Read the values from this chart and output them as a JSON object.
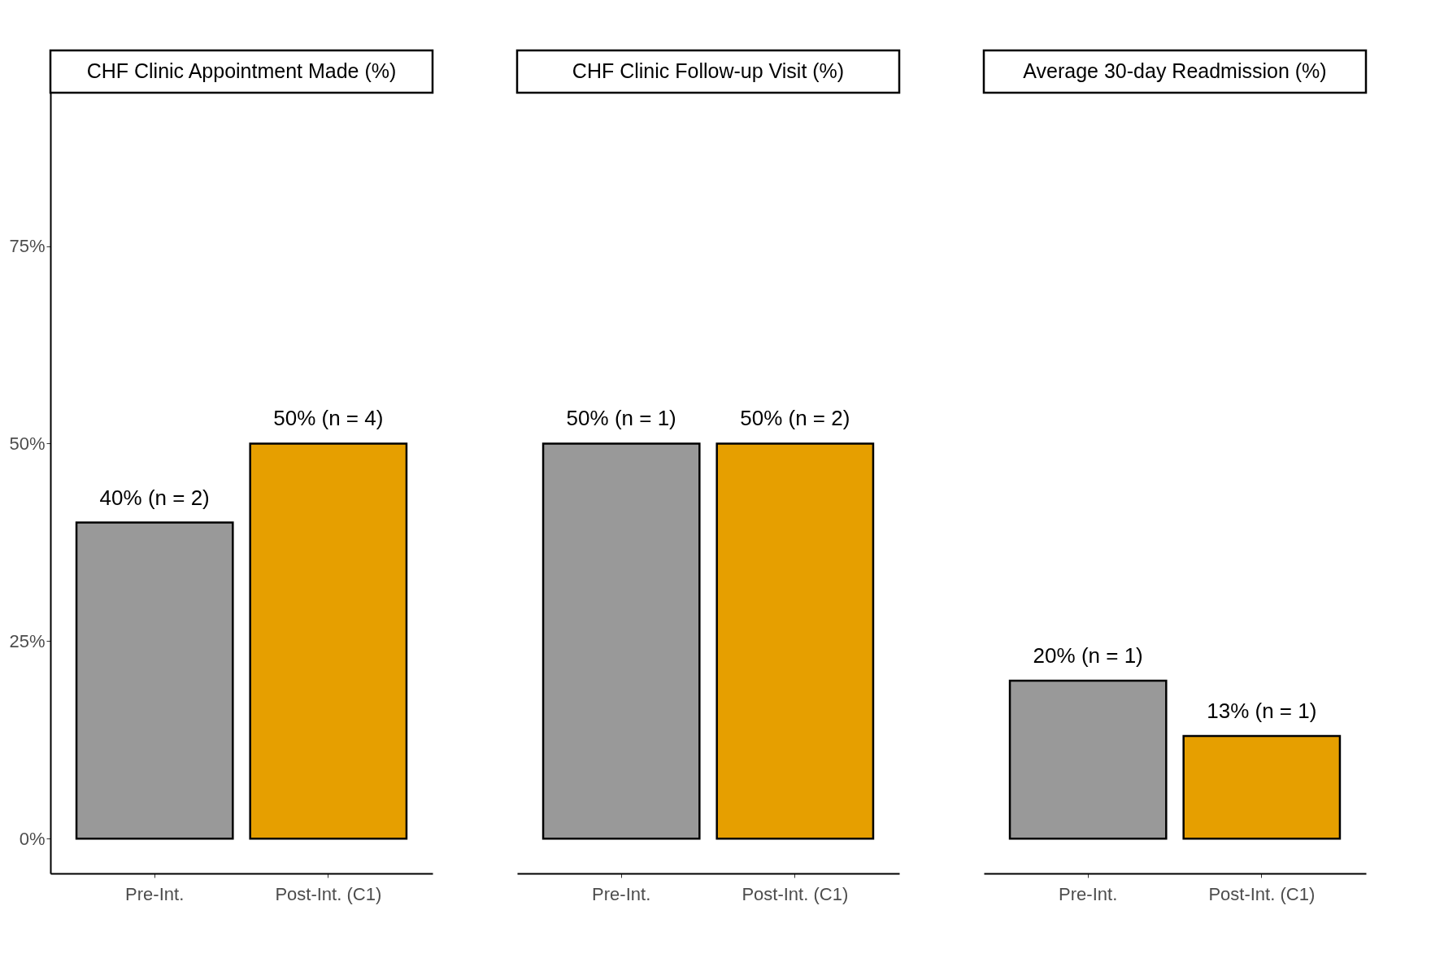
{
  "chart_data": [
    {
      "type": "bar",
      "title": "CHF Clinic Appointment Made (%)",
      "categories": [
        "Pre-Int.",
        "Post-Int. (C1)"
      ],
      "values": [
        40,
        50
      ],
      "colors": [
        "#999999",
        "#e69f00"
      ],
      "value_labels": [
        "40% (n = 2)",
        "50% (n = 4)"
      ],
      "ylim": [
        -4.4,
        94.4
      ],
      "yticks": [
        {
          "value": 0,
          "label": "0%"
        },
        {
          "value": 25,
          "label": "25%"
        },
        {
          "value": 50,
          "label": "50%"
        },
        {
          "value": 75,
          "label": "75%"
        }
      ]
    },
    {
      "type": "bar",
      "title": "CHF Clinic Follow-up Visit (%)",
      "categories": [
        "Pre-Int.",
        "Post-Int. (C1)"
      ],
      "values": [
        50,
        50
      ],
      "colors": [
        "#999999",
        "#e69f00"
      ],
      "value_labels": [
        "50% (n = 1)",
        "50% (n = 2)"
      ],
      "tick_labels": "x"
    },
    {
      "type": "bar",
      "title": "Average 30-day Readmission (%)",
      "categories": [
        "Pre-Int.",
        "Post-Int. (C1)"
      ],
      "values": [
        20,
        13
      ],
      "colors": [
        "#999999",
        "#e69f00"
      ],
      "value_labels": [
        "20% (n = 1)",
        "13% (n = 1)"
      ],
      "tick_labels": "x"
    }
  ]
}
